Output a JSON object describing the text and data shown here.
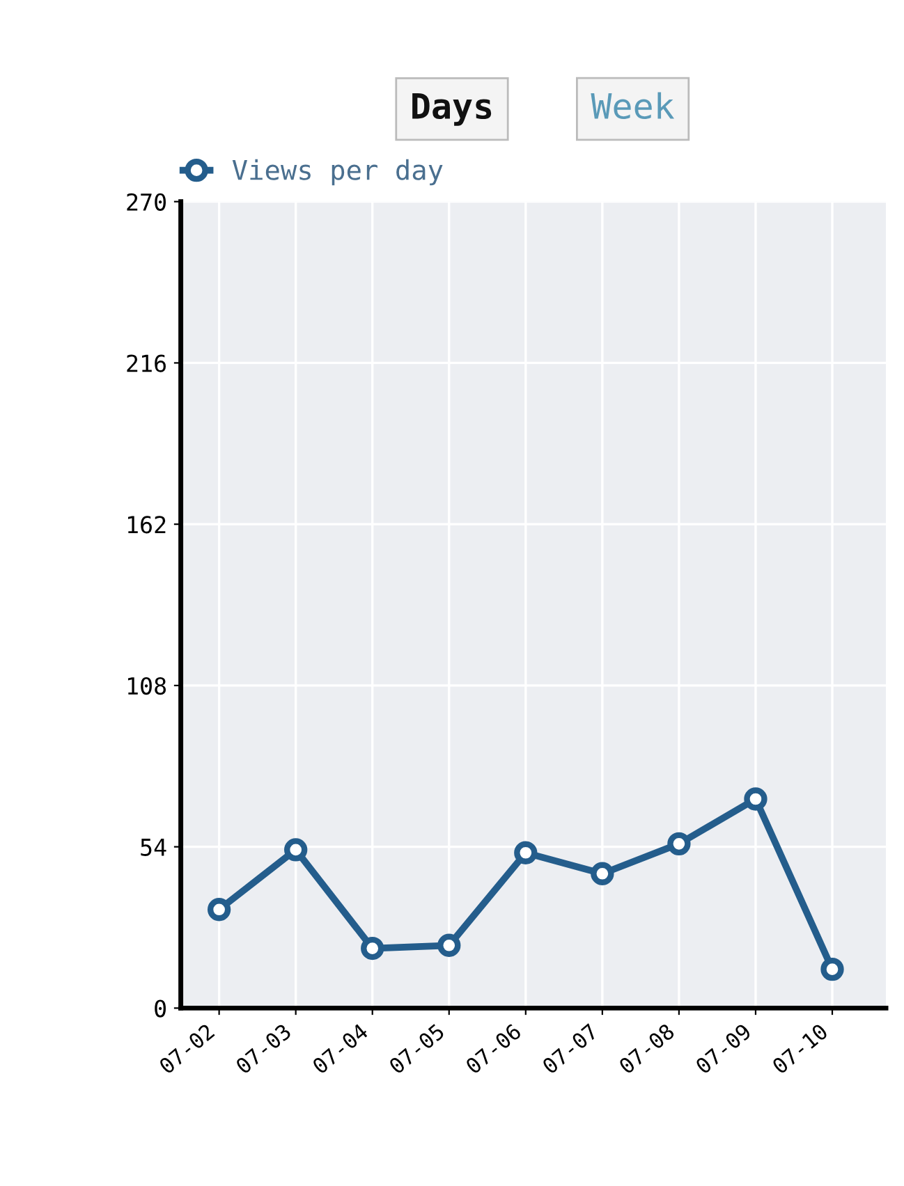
{
  "chart_data": {
    "type": "line",
    "categories": [
      "07-02",
      "07-03",
      "07-04",
      "07-05",
      "07-06",
      "07-07",
      "07-08",
      "07-09",
      "07-10"
    ],
    "series": [
      {
        "name": "Views per day",
        "color": "#245d8c",
        "values": [
          33,
          53,
          20,
          21,
          52,
          45,
          55,
          70,
          13
        ]
      }
    ],
    "ylim": [
      0,
      270
    ],
    "yticks": [
      0,
      54,
      108,
      162,
      216,
      270
    ],
    "annotations": [
      "Days",
      "Week"
    ],
    "legend": "top left",
    "marker": "circle",
    "line_style": "solid",
    "grid": true
  }
}
